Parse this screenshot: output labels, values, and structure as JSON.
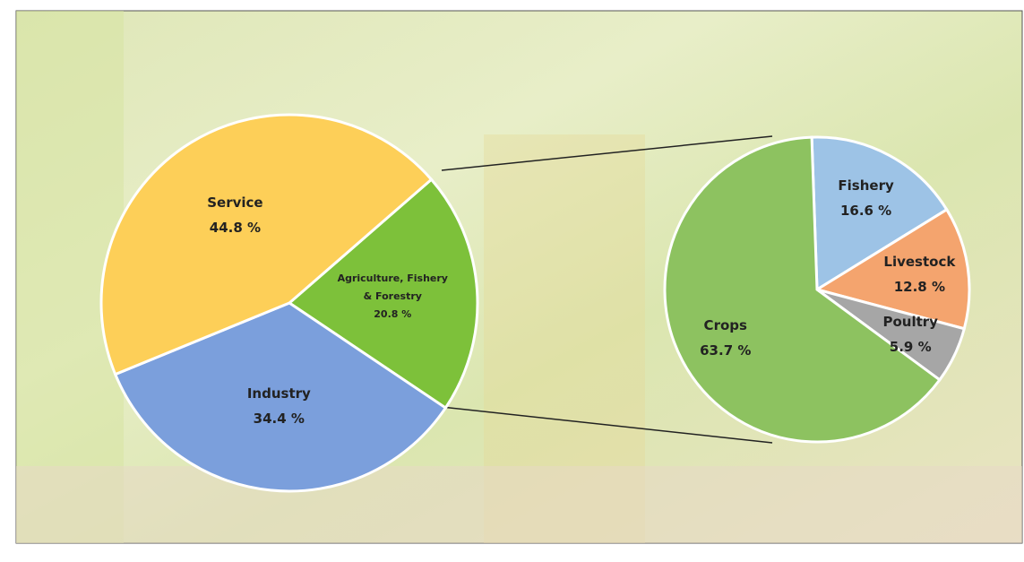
{
  "chart_data": [
    {
      "type": "pie",
      "categories": [
        "Agriculture, Fishery & Forestry",
        "Industry",
        "Service"
      ],
      "values": [
        20.8,
        34.4,
        44.8
      ],
      "value_labels": [
        "20.8 %",
        "34.4 %",
        "44.8 %"
      ],
      "colors": [
        "#7dc13a",
        "#7b9fdc",
        "#fdcf58"
      ]
    },
    {
      "type": "pie",
      "categories": [
        "Fishery",
        "Livestock",
        "Poultry",
        "Crops"
      ],
      "values": [
        16.6,
        12.8,
        5.9,
        63.7
      ],
      "value_labels": [
        "16.6 %",
        "12.8 %",
        "5.9 %",
        "63.7 %"
      ],
      "colors": [
        "#9dc3e6",
        "#f4a46e",
        "#a6a6a6",
        "#8dc260"
      ]
    }
  ]
}
